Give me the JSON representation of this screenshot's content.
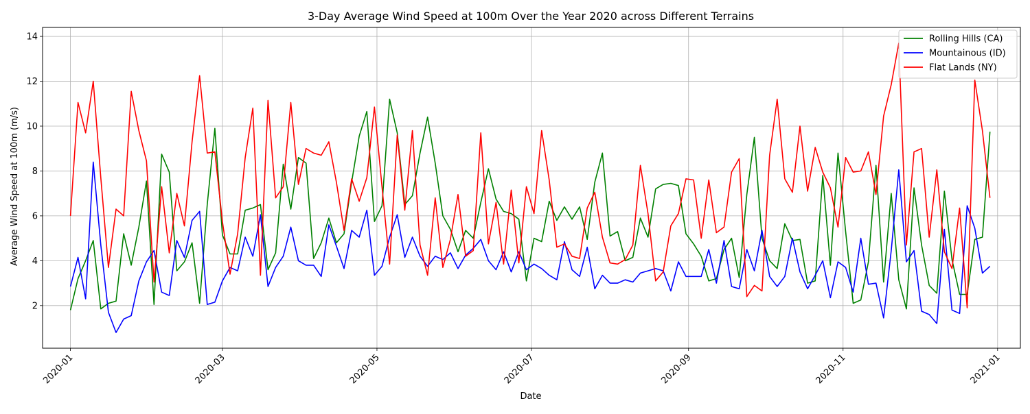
{
  "chart_data": {
    "type": "line",
    "title": "3-Day Average Wind Speed at 100m Over the Year 2020 across Different Terrains",
    "xlabel": "Date",
    "ylabel": "Average Wind Speed at 100m (m/s)",
    "x_start": "2020-01-01",
    "x_step_days": 3,
    "xlim": [
      "2019-12-21",
      "2021-01-10"
    ],
    "ylim": [
      0.1,
      14.4
    ],
    "x_ticks": [
      "2020-01",
      "2020-03",
      "2020-05",
      "2020-07",
      "2020-09",
      "2020-11",
      "2021-01"
    ],
    "y_ticks": [
      2,
      4,
      6,
      8,
      10,
      12,
      14
    ],
    "grid": true,
    "legend_position": "top-right",
    "series": [
      {
        "name": "Rolling Hills (CA)",
        "color": "#008000",
        "values": [
          1.8,
          3.2,
          4.0,
          4.9,
          1.85,
          2.1,
          2.2,
          5.2,
          3.8,
          5.5,
          7.55,
          2.05,
          8.75,
          7.95,
          3.55,
          3.95,
          4.8,
          2.1,
          6.5,
          9.9,
          5.15,
          4.3,
          4.3,
          6.25,
          6.35,
          6.5,
          3.6,
          4.35,
          8.3,
          6.3,
          8.6,
          8.35,
          4.1,
          4.8,
          5.9,
          4.8,
          5.2,
          7.5,
          9.55,
          10.65,
          5.75,
          6.45,
          11.2,
          9.7,
          6.5,
          6.9,
          8.8,
          10.4,
          8.35,
          6.0,
          5.4,
          4.4,
          5.35,
          5.0,
          6.6,
          8.1,
          6.75,
          6.2,
          6.1,
          5.85,
          3.1,
          5.0,
          4.85,
          6.65,
          5.8,
          6.4,
          5.85,
          6.4,
          4.95,
          7.5,
          8.8,
          5.1,
          5.3,
          4.0,
          4.15,
          5.9,
          5.05,
          7.2,
          7.4,
          7.45,
          7.35,
          5.2,
          4.75,
          4.2,
          3.1,
          3.2,
          4.5,
          5.0,
          3.25,
          6.95,
          9.5,
          5.0,
          4.0,
          3.65,
          5.65,
          4.9,
          4.95,
          3.0,
          3.1,
          7.8,
          3.8,
          8.8,
          5.3,
          2.1,
          2.25,
          3.95,
          8.25,
          3.05,
          7.0,
          3.15,
          1.85,
          7.25,
          4.7,
          2.9,
          2.55,
          7.1,
          4.05,
          2.5,
          2.5,
          4.95,
          5.05,
          9.75
        ]
      },
      {
        "name": "Mountainous (ID)",
        "color": "#0000ff",
        "values": [
          2.85,
          4.15,
          2.3,
          8.4,
          4.7,
          1.7,
          0.8,
          1.4,
          1.55,
          3.1,
          3.95,
          4.45,
          2.6,
          2.45,
          4.9,
          4.15,
          5.8,
          6.2,
          2.05,
          2.15,
          3.1,
          3.7,
          3.55,
          5.05,
          4.2,
          6.05,
          2.85,
          3.7,
          4.2,
          5.5,
          4.0,
          3.8,
          3.8,
          3.3,
          5.6,
          4.65,
          3.65,
          5.35,
          5.05,
          6.25,
          3.35,
          3.75,
          5.05,
          6.05,
          4.15,
          5.05,
          4.2,
          3.75,
          4.2,
          4.05,
          4.35,
          3.65,
          4.25,
          4.55,
          4.95,
          4.0,
          3.6,
          4.4,
          3.5,
          4.4,
          3.6,
          3.85,
          3.65,
          3.35,
          3.15,
          4.85,
          3.6,
          3.3,
          4.6,
          2.75,
          3.35,
          3.0,
          3.0,
          3.15,
          3.05,
          3.45,
          3.55,
          3.65,
          3.55,
          2.65,
          3.95,
          3.3,
          3.3,
          3.3,
          4.5,
          3.0,
          4.9,
          2.85,
          2.75,
          4.5,
          3.55,
          5.35,
          3.3,
          2.85,
          3.3,
          5.0,
          3.5,
          2.75,
          3.35,
          4.0,
          2.35,
          3.95,
          3.7,
          2.6,
          5.0,
          2.95,
          3.0,
          1.45,
          4.45,
          8.05,
          3.95,
          4.45,
          1.75,
          1.6,
          1.2,
          5.4,
          1.8,
          1.65,
          6.45,
          5.45,
          3.45,
          3.75
        ]
      },
      {
        "name": "Flat Lands (NY)",
        "color": "#ff0000",
        "values": [
          6.0,
          11.05,
          9.7,
          12.0,
          7.7,
          3.7,
          6.3,
          6.0,
          11.55,
          9.8,
          8.45,
          3.05,
          7.3,
          4.35,
          7.0,
          5.55,
          9.3,
          12.25,
          8.8,
          8.85,
          5.75,
          3.4,
          5.2,
          8.6,
          10.8,
          3.35,
          11.15,
          6.8,
          7.3,
          11.05,
          7.4,
          9.0,
          8.8,
          8.7,
          9.3,
          7.5,
          5.35,
          7.65,
          6.65,
          7.7,
          10.85,
          7.3,
          3.85,
          9.6,
          6.25,
          9.8,
          4.7,
          3.35,
          6.8,
          3.7,
          4.95,
          6.95,
          4.2,
          4.45,
          9.7,
          4.75,
          6.6,
          3.85,
          7.15,
          3.9,
          7.3,
          6.1,
          9.8,
          7.6,
          4.6,
          4.75,
          4.2,
          4.1,
          6.35,
          7.05,
          5.05,
          3.9,
          3.85,
          4.05,
          4.7,
          8.25,
          6.1,
          3.1,
          3.5,
          5.55,
          6.1,
          7.65,
          7.6,
          5.0,
          7.6,
          5.25,
          5.5,
          7.95,
          8.55,
          2.4,
          2.9,
          2.65,
          8.7,
          11.2,
          7.65,
          7.05,
          10.0,
          7.1,
          9.05,
          7.95,
          7.25,
          5.5,
          8.6,
          7.95,
          8.0,
          8.85,
          6.95,
          10.45,
          11.85,
          13.7,
          4.7,
          8.85,
          9.0,
          5.05,
          8.05,
          4.4,
          3.65,
          6.35,
          1.9,
          12.05,
          9.8,
          6.8
        ]
      }
    ]
  }
}
